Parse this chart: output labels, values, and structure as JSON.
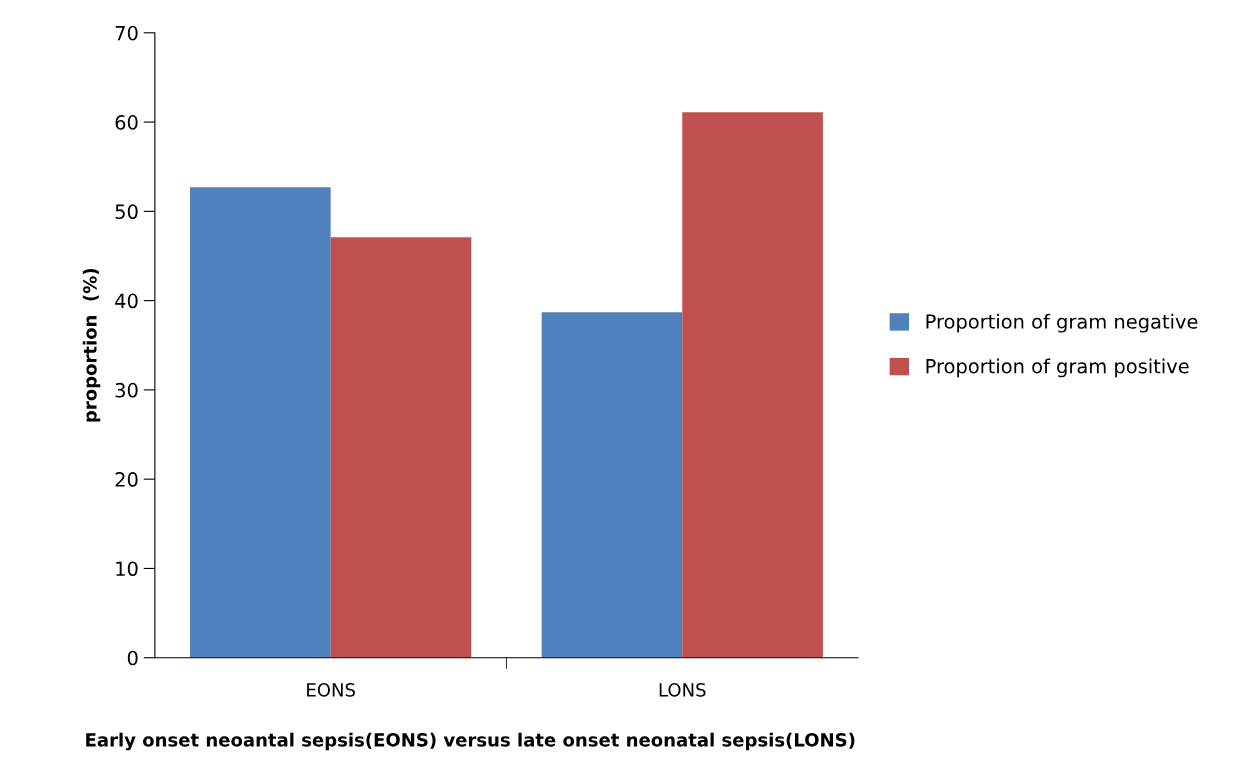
{
  "chart_data": {
    "type": "bar",
    "xlabel": "Early onset neoantal sepsis(EONS) versus late onset neonatal sepsis(LONS)",
    "ylabel": "proportion  (%)",
    "categories": [
      "EONS",
      "LONS"
    ],
    "series": [
      {
        "name": "Proportion of gram negative",
        "color": "#4f81bd",
        "values": [
          52.7,
          38.7
        ]
      },
      {
        "name": "Proportion of gram positive",
        "color": "#c0504d",
        "values": [
          47.1,
          61.1
        ]
      }
    ],
    "ylim": [
      0,
      70
    ],
    "yticks": [
      0,
      10,
      20,
      30,
      40,
      50,
      60,
      70
    ],
    "grid": false,
    "legend": "right"
  }
}
